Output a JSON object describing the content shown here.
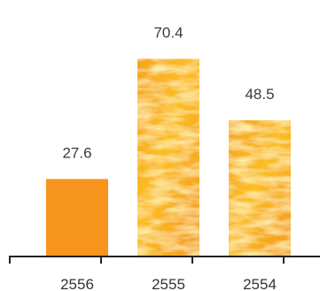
{
  "chart_data": {
    "type": "bar",
    "categories": [
      "2556",
      "2555",
      "2554"
    ],
    "values": [
      27.6,
      70.4,
      48.5
    ],
    "value_labels": [
      "27.6",
      "70.4",
      "48.5"
    ],
    "title": "",
    "xlabel": "",
    "ylabel": "",
    "ylim": [
      0,
      80
    ],
    "grid": false,
    "legend": "none",
    "colors": {
      "bar_solid": "#F7941D",
      "bar_texture_base": "#F9B21E",
      "bar_texture_highlight": "#FFE36A",
      "bar_texture_shadow": "#E8860F",
      "axis": "#222222"
    },
    "bar_fill_styles": [
      "solid",
      "orange-texture",
      "orange-texture"
    ]
  }
}
